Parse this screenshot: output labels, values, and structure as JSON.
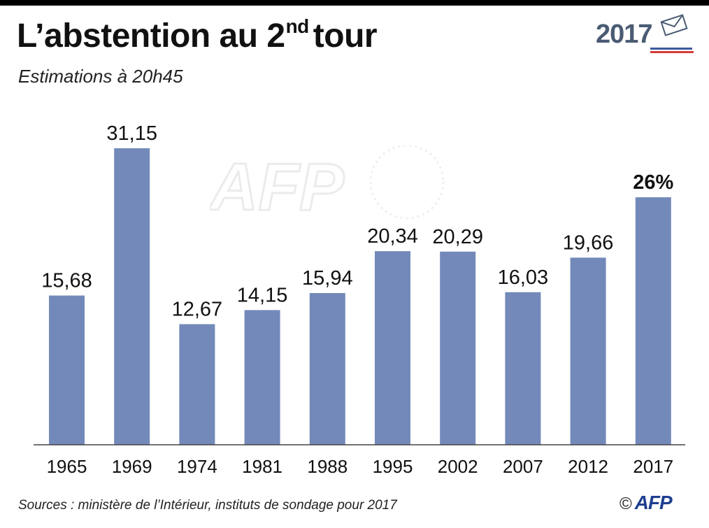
{
  "header": {
    "title_main": "L’abstention au 2",
    "title_sup": "nd",
    "title_end": "tour",
    "subtitle": "Estimations à 20h45",
    "logo_year": "2017"
  },
  "colors": {
    "bar": "#7389b9",
    "axis": "#444444",
    "text": "#111111",
    "logo_blue": "#3d5a9c",
    "logo_red": "#d43c3c"
  },
  "chart_data": {
    "type": "bar",
    "title": "L’abstention au 2nd tour",
    "subtitle": "Estimations à 20h45",
    "xlabel": "",
    "ylabel": "",
    "unit": "%",
    "ylim": [
      0,
      32
    ],
    "grid": false,
    "categories": [
      "1965",
      "1969",
      "1974",
      "1981",
      "1988",
      "1995",
      "2002",
      "2007",
      "2012",
      "2017"
    ],
    "values": [
      15.68,
      31.15,
      12.67,
      14.15,
      15.94,
      20.34,
      20.29,
      16.03,
      19.66,
      26
    ],
    "labels": [
      "15,68",
      "31,15",
      "12,67",
      "14,15",
      "15,94",
      "20,34",
      "20,29",
      "16,03",
      "19,66",
      "26%"
    ],
    "highlight_index": 9
  },
  "footer": {
    "source": "Sources : ministère de l’Intérieur, instituts de sondage pour 2017",
    "copyright": "©",
    "agency": "AFP"
  },
  "watermark": {
    "text": "AFP"
  }
}
